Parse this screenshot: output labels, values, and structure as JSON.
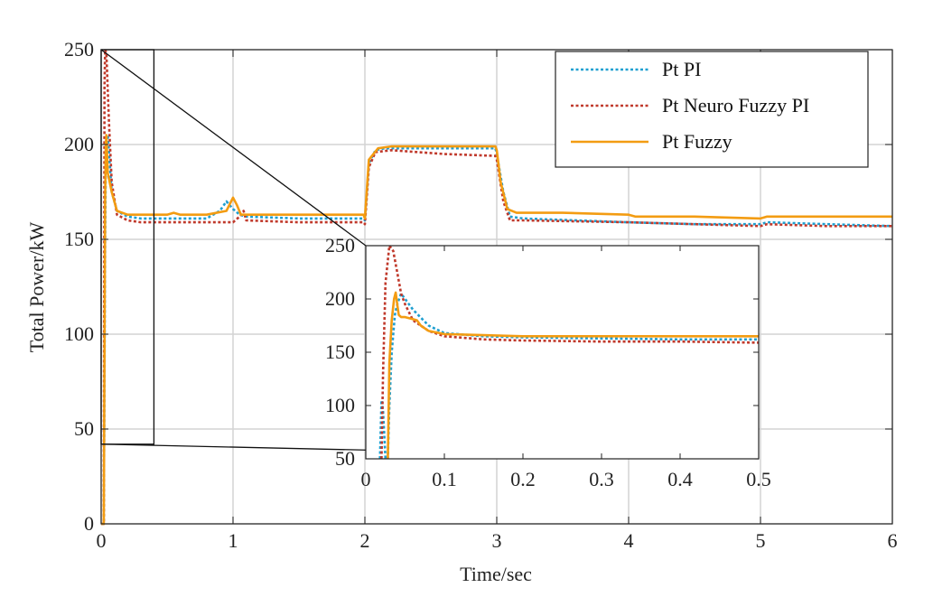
{
  "chart_data": [
    {
      "type": "line",
      "xlabel": "Time/sec",
      "ylabel": "Total Power/kW",
      "xlim": [
        0,
        6
      ],
      "ylim": [
        0,
        250
      ],
      "xticks": [
        0,
        1,
        2,
        3,
        4,
        5,
        6
      ],
      "yticks": [
        0,
        50,
        100,
        150,
        200,
        250
      ],
      "grid": true,
      "legend": "top-right",
      "series": [
        {
          "name": "Pt PI",
          "color": "#1f9fd0",
          "style": "dotted",
          "x": [
            0,
            0.02,
            0.03,
            0.035,
            0.04,
            0.05,
            0.08,
            0.12,
            0.2,
            0.3,
            0.5,
            0.8,
            0.9,
            0.95,
            1.0,
            1.05,
            1.1,
            1.5,
            1.99,
            2.0,
            2.03,
            2.08,
            2.15,
            2.3,
            2.6,
            2.99,
            3.0,
            3.05,
            3.1,
            3.2,
            4.0,
            4.5,
            5.0,
            5.05,
            5.5,
            6.0
          ],
          "y": [
            0,
            0,
            150,
            190,
            200,
            205,
            175,
            165,
            162,
            161,
            161,
            161,
            165,
            170,
            166,
            163,
            162,
            161,
            161,
            160,
            190,
            197,
            198,
            198,
            198,
            198,
            195,
            175,
            162,
            161,
            159,
            158,
            158,
            159,
            158,
            157
          ]
        },
        {
          "name": "Pt Neuro Fuzzy PI",
          "color": "#c0392b",
          "style": "dotted",
          "x": [
            0,
            0.02,
            0.025,
            0.03,
            0.04,
            0.06,
            0.08,
            0.12,
            0.2,
            0.3,
            0.5,
            0.8,
            1.0,
            1.05,
            1.08,
            1.1,
            1.5,
            1.99,
            2.0,
            2.03,
            2.08,
            2.2,
            2.4,
            2.6,
            2.99,
            3.0,
            3.05,
            3.1,
            3.2,
            4.0,
            4.5,
            5.0,
            5.05,
            5.5,
            6.0
          ],
          "y": [
            0,
            0,
            230,
            250,
            248,
            210,
            180,
            163,
            160,
            159,
            159,
            159,
            159,
            162,
            165,
            160,
            159,
            159,
            158,
            188,
            196,
            197,
            196,
            195,
            194,
            192,
            170,
            160,
            160,
            159,
            158,
            157,
            158,
            157,
            157
          ]
        },
        {
          "name": "Pt Fuzzy",
          "color": "#f39c12",
          "style": "solid",
          "x": [
            0,
            0.02,
            0.03,
            0.035,
            0.04,
            0.05,
            0.08,
            0.12,
            0.2,
            0.4,
            0.5,
            0.55,
            0.6,
            0.8,
            0.95,
            1.0,
            1.03,
            1.06,
            1.1,
            1.5,
            1.99,
            2.0,
            2.03,
            2.1,
            2.2,
            2.5,
            2.99,
            3.0,
            3.03,
            3.08,
            3.15,
            3.5,
            4.0,
            4.05,
            4.5,
            5.0,
            5.05,
            5.5,
            6.0
          ],
          "y": [
            0,
            0,
            170,
            200,
            205,
            185,
            175,
            165,
            163,
            163,
            163,
            164,
            163,
            163,
            165,
            172,
            168,
            163,
            163,
            163,
            163,
            161,
            192,
            198,
            199,
            199,
            199,
            197,
            180,
            166,
            164,
            164,
            163,
            162,
            162,
            161,
            162,
            162,
            162
          ]
        }
      ]
    },
    {
      "type": "line",
      "inset": true,
      "xlim": [
        0,
        0.5
      ],
      "ylim": [
        50,
        250
      ],
      "xticks": [
        0,
        0.1,
        0.2,
        0.3,
        0.4,
        0.5
      ],
      "yticks": [
        50,
        100,
        150,
        200,
        250
      ],
      "grid": false,
      "series": [
        {
          "name": "Pt PI",
          "color": "#1f9fd0",
          "style": "dotted",
          "x": [
            0.018,
            0.02,
            0.022,
            0.025,
            0.028,
            0.03,
            0.033,
            0.037,
            0.04,
            0.045,
            0.05,
            0.06,
            0.08,
            0.1,
            0.15,
            0.2,
            0.3,
            0.4,
            0.5
          ],
          "y": [
            50,
            105,
            95,
            50,
            50,
            100,
            150,
            185,
            195,
            205,
            200,
            190,
            175,
            168,
            165,
            164,
            163,
            162,
            162
          ]
        },
        {
          "name": "Pt Neuro Fuzzy PI",
          "color": "#c0392b",
          "style": "dotted",
          "x": [
            0.02,
            0.022,
            0.025,
            0.03,
            0.035,
            0.04,
            0.045,
            0.05,
            0.06,
            0.08,
            0.1,
            0.15,
            0.2,
            0.3,
            0.4,
            0.5
          ],
          "y": [
            50,
            130,
            215,
            250,
            245,
            225,
            205,
            195,
            180,
            170,
            165,
            162,
            161,
            160,
            160,
            159
          ]
        },
        {
          "name": "Pt Fuzzy",
          "color": "#f39c12",
          "style": "solid",
          "x": [
            0.028,
            0.03,
            0.033,
            0.036,
            0.038,
            0.04,
            0.042,
            0.045,
            0.05,
            0.06,
            0.065,
            0.07,
            0.08,
            0.1,
            0.15,
            0.2,
            0.3,
            0.4,
            0.5
          ],
          "y": [
            50,
            140,
            180,
            200,
            206,
            195,
            185,
            183,
            183,
            181,
            180,
            175,
            170,
            167,
            166,
            165,
            165,
            165,
            165
          ]
        }
      ]
    }
  ]
}
